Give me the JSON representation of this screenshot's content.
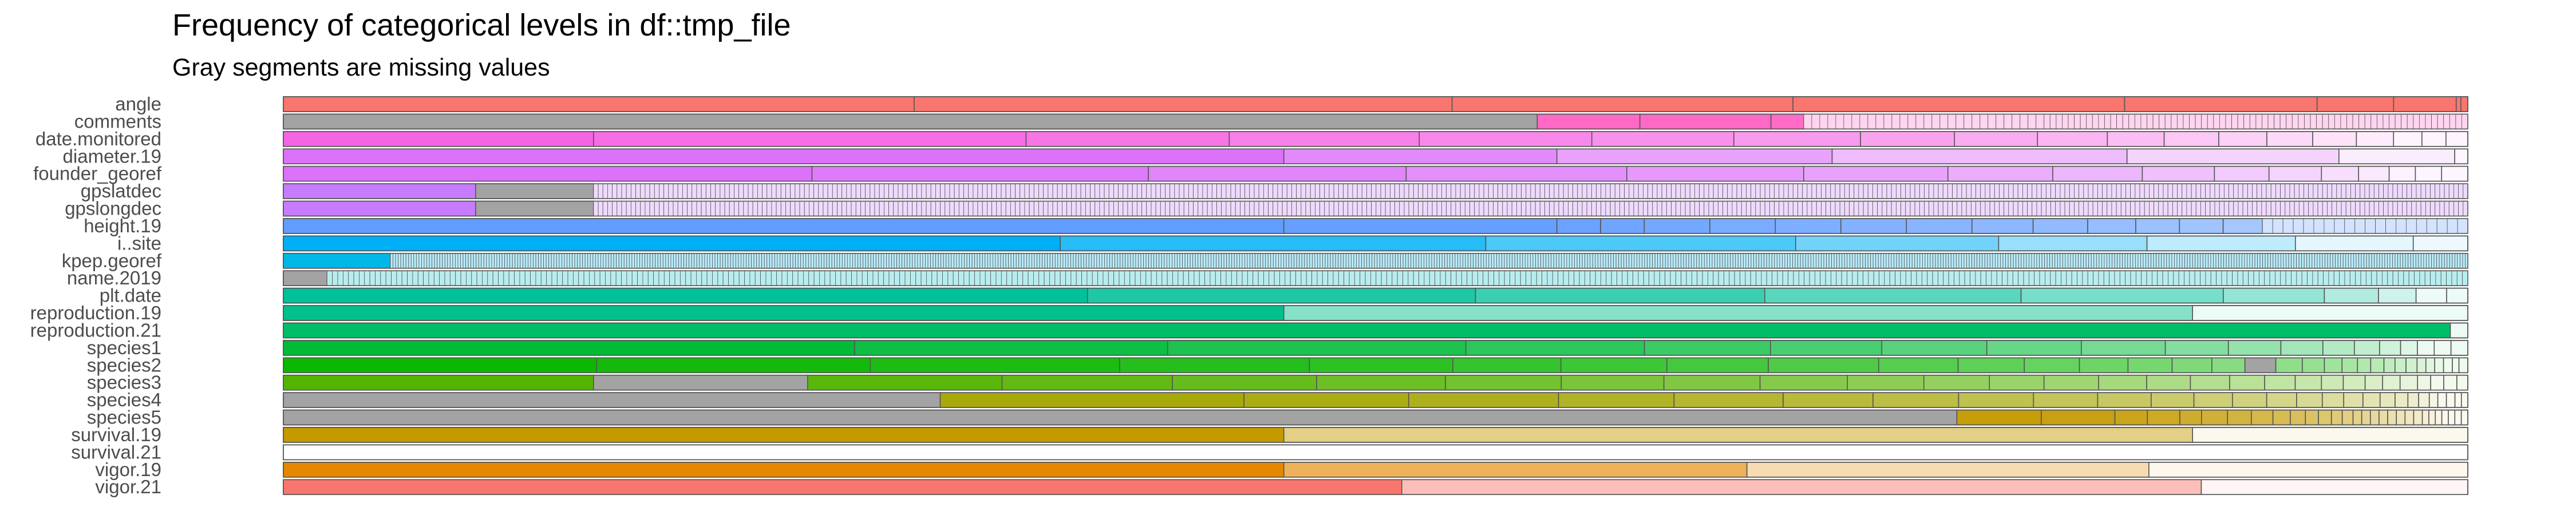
{
  "chart_data": {
    "type": "bar",
    "orientation": "horizontal",
    "stacked": "proportional",
    "title": "Frequency of categorical levels in df::tmp_file",
    "subtitle": "Gray segments are missing values",
    "xlabel": "",
    "ylabel": "",
    "grid": false,
    "legend": "none",
    "categories": [
      "angle",
      "comments",
      "date.monitored",
      "diameter.19",
      "founder_georef",
      "gpslatdec",
      "gpslongdec",
      "height.19",
      "i..site",
      "kpep.georef",
      "name.2019",
      "plt.date",
      "reproduction.19",
      "reproduction.21",
      "species1",
      "species2",
      "species3",
      "species4",
      "species5",
      "survival.19",
      "survival.21",
      "vigor.19",
      "vigor.21"
    ],
    "series": [
      {
        "hue": "#f8766d",
        "light_tail": false,
        "seg": [
          0.272,
          0.232,
          0.147,
          0.143,
          0.083,
          0.033,
          0.027,
          0.002,
          0.003
        ]
      },
      {
        "hue": "#a3a3a3",
        "light_tail": false,
        "seg": [
          0.574,
          {
            "h": "#ff66c4",
            "v": 0.047
          },
          {
            "h": "#ff66c4",
            "v": 0.06
          },
          {
            "h": "#ff66c4",
            "v": 0.015
          },
          {
            "gen": 30,
            "v": 0.11,
            "h": "#ff66c4"
          },
          {
            "gen": 70,
            "v": 0.194,
            "h": "#ff66c4"
          }
        ]
      },
      {
        "hue": "#f564e3",
        "light_tail": true,
        "seg": [
          0.142,
          0.198,
          0.093,
          0.087,
          0.079,
          0.065,
          0.058,
          0.043,
          0.038,
          0.032,
          0.026,
          0.025,
          0.022,
          0.021,
          0.02,
          0.017,
          0.013,
          0.011,
          0.01
        ]
      },
      {
        "hue": "#dc71fa",
        "light_tail": true,
        "seg": [
          0.458,
          0.125,
          0.126,
          0.135,
          0.097,
          0.053,
          0.006
        ]
      },
      {
        "hue": "#dc71fa",
        "light_tail": true,
        "seg": [
          0.242,
          0.154,
          0.118,
          0.101,
          0.081,
          0.066,
          0.048,
          0.041,
          0.033,
          0.025,
          0.024,
          0.017,
          0.014,
          0.012,
          0.012,
          0.012
        ]
      },
      {
        "hue": "#c77cff",
        "light_tail": true,
        "seg": [
          0.088,
          {
            "h": "#a3a3a3",
            "v": 0.054
          },
          {
            "gen": 400,
            "v": 0.858
          }
        ]
      },
      {
        "hue": "#c77cff",
        "light_tail": true,
        "seg": [
          0.088,
          {
            "h": "#a3a3a3",
            "v": 0.054
          },
          {
            "gen": 400,
            "v": 0.858
          }
        ]
      },
      {
        "hue": "#619cff",
        "light_tail": true,
        "seg": [
          0.458,
          0.125,
          0.02,
          0.02,
          0.03,
          0.03,
          0.03,
          0.03,
          0.03,
          0.028,
          0.025,
          0.022,
          0.02,
          0.02,
          0.018,
          {
            "gen": 20,
            "v": 0.094
          }
        ]
      },
      {
        "hue": "#00b0f6",
        "light_tail": true,
        "seg": [
          0.356,
          0.195,
          0.142,
          0.093,
          0.068,
          0.068,
          0.054,
          0.025
        ]
      },
      {
        "hue": "#00b8e7",
        "light_tail": true,
        "seg": [
          0.049,
          {
            "gen": 800,
            "v": 0.951
          }
        ]
      },
      {
        "hue": "#a3a3a3",
        "light_tail": false,
        "seg": [
          0.02,
          {
            "gen": 400,
            "v": 0.98,
            "h": "#00bfc4"
          }
        ]
      },
      {
        "hue": "#00c19a",
        "light_tail": true,
        "seg": [
          0.342,
          0.165,
          0.123,
          0.109,
          0.086,
          0.043,
          0.023,
          0.016,
          0.013,
          0.009
        ]
      },
      {
        "hue": "#00c08b",
        "light_tail": true,
        "seg": [
          0.458,
          0.416,
          0.126
        ]
      },
      {
        "hue": "#00be67",
        "light_tail": true,
        "seg": [
          0.992,
          0.008
        ]
      },
      {
        "hue": "#00ba38",
        "light_tail": true,
        "seg": [
          0.272,
          0.149,
          0.142,
          0.085,
          0.06,
          0.053,
          0.05,
          0.045,
          0.04,
          0.03,
          0.025,
          0.02,
          0.015,
          0.012,
          0.01,
          0.008,
          0.008,
          0.008,
          0.008
        ]
      },
      {
        "hue": "#0cb702",
        "light_tail": true,
        "seg": [
          0.142,
          0.124,
          0.113,
          0.086,
          0.065,
          0.049,
          0.048,
          0.046,
          0.05,
          0.036,
          0.03,
          0.025,
          0.022,
          0.02,
          0.018,
          0.015,
          {
            "h": "#a3a3a3",
            "v": 0.014
          },
          0.012,
          0.01,
          0.008,
          0.007,
          0.006,
          0.006,
          0.005,
          0.005,
          0.005,
          0.004,
          0.004,
          0.004,
          0.004,
          0.003,
          0.004
        ]
      },
      {
        "hue": "#53b400",
        "light_tail": true,
        "seg": [
          0.142,
          {
            "h": "#a3a3a3",
            "v": 0.098
          },
          0.089,
          0.078,
          0.066,
          0.059,
          0.053,
          0.047,
          0.044,
          0.04,
          0.035,
          0.03,
          0.025,
          0.025,
          0.022,
          0.02,
          0.018,
          0.016,
          0.014,
          0.012,
          0.01,
          0.01,
          0.008,
          0.008,
          0.008,
          0.006,
          0.006,
          0.006,
          0.005
        ]
      },
      {
        "hue": "#a3a3a3",
        "light_tail": false,
        "seg": [
          0.307,
          {
            "h": "#a3a500",
            "v": 0.142
          },
          {
            "h": "#a3a500",
            "v": 0.077
          },
          {
            "h": "#a3a500",
            "v": 0.07
          },
          {
            "h": "#a3a500",
            "v": 0.054
          },
          {
            "h": "#a3a500",
            "v": 0.051
          },
          {
            "h": "#a3a500",
            "v": 0.042
          },
          {
            "h": "#a3a500",
            "v": 0.04
          },
          {
            "h": "#a3a500",
            "v": 0.035
          },
          {
            "h": "#a3a500",
            "v": 0.03
          },
          {
            "h": "#a3a500",
            "v": 0.025
          },
          {
            "h": "#a3a500",
            "v": 0.02
          },
          {
            "h": "#a3a500",
            "v": 0.018
          },
          {
            "h": "#a3a500",
            "v": 0.016
          },
          {
            "h": "#a3a500",
            "v": 0.014
          },
          {
            "h": "#a3a500",
            "v": 0.012
          },
          {
            "h": "#a3a500",
            "v": 0.01
          },
          {
            "h": "#a3a500",
            "v": 0.009
          },
          {
            "h": "#a3a500",
            "v": 0.008
          },
          {
            "h": "#a3a500",
            "v": 0.007
          },
          {
            "h": "#a3a500",
            "v": 0.006
          },
          {
            "h": "#a3a500",
            "v": 0.005
          },
          {
            "h": "#a3a500",
            "v": 0.005
          },
          {
            "h": "#a3a500",
            "v": 0.004
          },
          {
            "h": "#a3a500",
            "v": 0.004
          },
          {
            "h": "#a3a500",
            "v": 0.004
          },
          {
            "h": "#a3a500",
            "v": 0.003
          },
          {
            "h": "#a3a500",
            "v": 0.003
          }
        ]
      },
      {
        "hue": "#a3a3a3",
        "light_tail": false,
        "seg": [
          0.773,
          {
            "h": "#c49a00",
            "v": 0.039
          },
          {
            "h": "#c49a00",
            "v": 0.034
          },
          {
            "h": "#c49a00",
            "v": 0.015
          },
          {
            "h": "#c49a00",
            "v": 0.015
          },
          {
            "h": "#c49a00",
            "v": 0.01
          },
          {
            "h": "#c49a00",
            "v": 0.012
          },
          {
            "h": "#c49a00",
            "v": 0.011
          },
          {
            "h": "#c49a00",
            "v": 0.01
          },
          {
            "h": "#c49a00",
            "v": 0.008
          },
          {
            "h": "#c49a00",
            "v": 0.007
          },
          {
            "h": "#c49a00",
            "v": 0.006
          },
          {
            "h": "#c49a00",
            "v": 0.006
          },
          {
            "h": "#c49a00",
            "v": 0.005
          },
          {
            "h": "#c49a00",
            "v": 0.005
          },
          {
            "h": "#c49a00",
            "v": 0.004
          },
          {
            "h": "#c49a00",
            "v": 0.004
          },
          {
            "h": "#c49a00",
            "v": 0.004
          },
          {
            "h": "#c49a00",
            "v": 0.004
          },
          {
            "h": "#c49a00",
            "v": 0.004
          },
          {
            "h": "#c49a00",
            "v": 0.004
          },
          {
            "h": "#c49a00",
            "v": 0.004
          },
          {
            "h": "#c49a00",
            "v": 0.004
          },
          {
            "h": "#c49a00",
            "v": 0.003
          },
          {
            "h": "#c49a00",
            "v": 0.003
          },
          {
            "h": "#c49a00",
            "v": 0.003
          },
          {
            "h": "#c49a00",
            "v": 0.003
          },
          {
            "h": "#c49a00",
            "v": 0.003
          },
          {
            "h": "#c49a00",
            "v": 0.003
          },
          {
            "h": "#c49a00",
            "v": 0.003
          }
        ]
      },
      {
        "hue": "#c49a00",
        "light_tail": true,
        "seg": [
          0.458,
          0.416,
          0.126
        ]
      },
      {
        "hue": "#ffffff",
        "light_tail": false,
        "seg": [
          1.0
        ]
      },
      {
        "hue": "#e58700",
        "light_tail": true,
        "seg": [
          0.458,
          0.212,
          0.184,
          0.146
        ]
      },
      {
        "hue": "#f8766d",
        "light_tail": true,
        "seg": [
          0.512,
          0.366,
          0.122
        ]
      }
    ]
  }
}
